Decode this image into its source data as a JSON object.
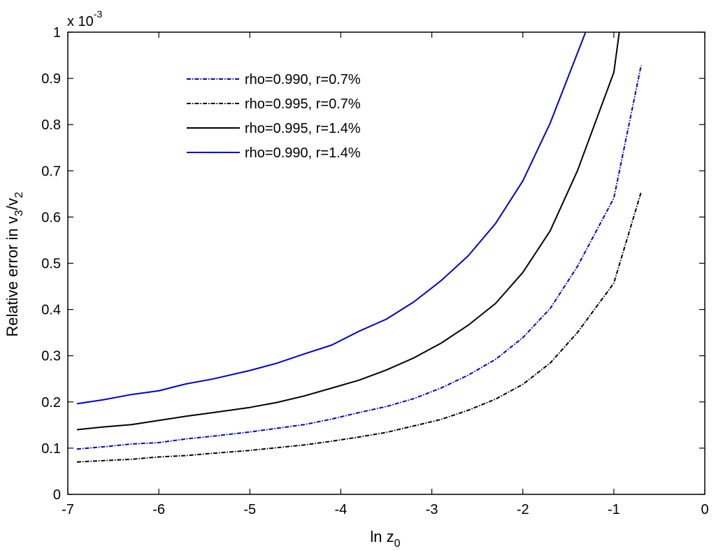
{
  "chart_data": {
    "type": "line",
    "xlabel": {
      "main": "ln z",
      "sub": "0"
    },
    "ylabel": {
      "p1": "Relative error in v",
      "s1": "3",
      "p2": "/v",
      "s2": "2"
    },
    "y_exponent": {
      "base": "x 10",
      "power": "-3"
    },
    "xlim": [
      -7,
      0
    ],
    "ylim": [
      0,
      1
    ],
    "x_ticks": [
      -7,
      -6,
      -5,
      -4,
      -3,
      -2,
      -1,
      0
    ],
    "x_tick_labels": [
      "-7",
      "-6",
      "-5",
      "-4",
      "-3",
      "-2",
      "-1",
      "0"
    ],
    "y_ticks": [
      0,
      0.1,
      0.2,
      0.3,
      0.4,
      0.5,
      0.6,
      0.7,
      0.8,
      0.9,
      1
    ],
    "y_tick_labels": [
      "0",
      "0.1",
      "0.2",
      "0.3",
      "0.4",
      "0.5",
      "0.6",
      "0.7",
      "0.8",
      "0.9",
      "1"
    ],
    "grid": false,
    "legend_position": "top-left",
    "series": [
      {
        "name": "rho=0.990, r=0.7%",
        "color": "#0000cc",
        "dash": "dashdot",
        "points": [
          [
            -6.9,
            0.098
          ],
          [
            -6.6,
            0.103
          ],
          [
            -6.3,
            0.109
          ],
          [
            -6.0,
            0.112
          ],
          [
            -5.7,
            0.12
          ],
          [
            -5.4,
            0.126
          ],
          [
            -5.0,
            0.135
          ],
          [
            -4.7,
            0.143
          ],
          [
            -4.4,
            0.151
          ],
          [
            -4.1,
            0.163
          ],
          [
            -3.8,
            0.177
          ],
          [
            -3.5,
            0.19
          ],
          [
            -3.2,
            0.207
          ],
          [
            -2.9,
            0.23
          ],
          [
            -2.6,
            0.258
          ],
          [
            -2.3,
            0.292
          ],
          [
            -2.0,
            0.339
          ],
          [
            -1.7,
            0.402
          ],
          [
            -1.4,
            0.493
          ],
          [
            -1.0,
            0.641
          ],
          [
            -0.7,
            0.928
          ]
        ]
      },
      {
        "name": "rho=0.995, r=0.7%",
        "color": "#000000",
        "dash": "dashdot",
        "points": [
          [
            -6.9,
            0.07
          ],
          [
            -6.6,
            0.073
          ],
          [
            -6.3,
            0.076
          ],
          [
            -6.0,
            0.081
          ],
          [
            -5.7,
            0.084
          ],
          [
            -5.4,
            0.089
          ],
          [
            -5.0,
            0.095
          ],
          [
            -4.7,
            0.101
          ],
          [
            -4.4,
            0.107
          ],
          [
            -4.1,
            0.115
          ],
          [
            -3.8,
            0.124
          ],
          [
            -3.5,
            0.134
          ],
          [
            -3.2,
            0.148
          ],
          [
            -2.9,
            0.162
          ],
          [
            -2.6,
            0.182
          ],
          [
            -2.3,
            0.206
          ],
          [
            -2.0,
            0.238
          ],
          [
            -1.7,
            0.284
          ],
          [
            -1.4,
            0.35
          ],
          [
            -1.0,
            0.457
          ],
          [
            -0.7,
            0.654
          ]
        ]
      },
      {
        "name": "rho=0.995, r=1.4%",
        "color": "#000000",
        "dash": "solid",
        "points": [
          [
            -6.9,
            0.14
          ],
          [
            -6.6,
            0.146
          ],
          [
            -6.3,
            0.151
          ],
          [
            -6.0,
            0.16
          ],
          [
            -5.7,
            0.169
          ],
          [
            -5.4,
            0.177
          ],
          [
            -5.0,
            0.188
          ],
          [
            -4.7,
            0.199
          ],
          [
            -4.4,
            0.213
          ],
          [
            -4.1,
            0.23
          ],
          [
            -3.8,
            0.247
          ],
          [
            -3.5,
            0.269
          ],
          [
            -3.2,
            0.295
          ],
          [
            -2.9,
            0.327
          ],
          [
            -2.6,
            0.366
          ],
          [
            -2.3,
            0.413
          ],
          [
            -2.0,
            0.48
          ],
          [
            -1.7,
            0.57
          ],
          [
            -1.4,
            0.7
          ],
          [
            -1.0,
            0.913
          ],
          [
            -0.94,
            1.0
          ]
        ]
      },
      {
        "name": "rho=0.990, r=1.4%",
        "color": "#0000cc",
        "dash": "solid",
        "points": [
          [
            -6.9,
            0.196
          ],
          [
            -6.6,
            0.205
          ],
          [
            -6.3,
            0.216
          ],
          [
            -6.0,
            0.224
          ],
          [
            -5.7,
            0.239
          ],
          [
            -5.4,
            0.25
          ],
          [
            -5.0,
            0.268
          ],
          [
            -4.7,
            0.284
          ],
          [
            -4.4,
            0.304
          ],
          [
            -4.1,
            0.323
          ],
          [
            -3.8,
            0.353
          ],
          [
            -3.5,
            0.379
          ],
          [
            -3.2,
            0.416
          ],
          [
            -2.9,
            0.462
          ],
          [
            -2.6,
            0.516
          ],
          [
            -2.3,
            0.586
          ],
          [
            -2.0,
            0.678
          ],
          [
            -1.7,
            0.803
          ],
          [
            -1.31,
            1.0
          ]
        ]
      }
    ]
  }
}
